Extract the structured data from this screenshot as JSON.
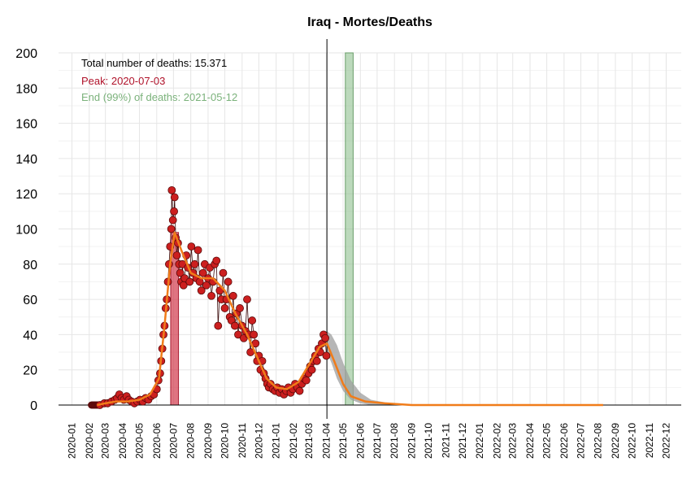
{
  "chart_data": {
    "type": "scatter",
    "title": "Iraq - Mortes/Deaths",
    "xlabel": "",
    "ylabel": "",
    "ylim": [
      0,
      200
    ],
    "yticks": [
      0,
      20,
      40,
      60,
      80,
      100,
      120,
      140,
      160,
      180,
      200
    ],
    "xlim": [
      "2019-12-08",
      "2022-12-28"
    ],
    "xticks": [
      "2020-01",
      "2020-02",
      "2020-03",
      "2020-04",
      "2020-05",
      "2020-06",
      "2020-07",
      "2020-08",
      "2020-09",
      "2020-10",
      "2020-11",
      "2020-12",
      "2021-01",
      "2021-02",
      "2021-03",
      "2021-04",
      "2021-05",
      "2021-06",
      "2021-07",
      "2021-08",
      "2021-09",
      "2021-10",
      "2021-11",
      "2021-12",
      "2022-01",
      "2022-02",
      "2022-03",
      "2022-04",
      "2022-05",
      "2022-06",
      "2022-07",
      "2022-08",
      "2022-09",
      "2022-10",
      "2022-11",
      "2022-12"
    ],
    "grid": true,
    "annotations": {
      "total": "Total number of deaths: 15.371",
      "peak": "Peak: 2020-07-03",
      "end": "End (99%) of deaths: 2021-05-12"
    },
    "vline_date": "2021-04-02",
    "peak_band": [
      "2020-06-26",
      "2020-07-10"
    ],
    "end_band": [
      "2021-05-05",
      "2021-05-19"
    ],
    "colors": {
      "points": "#cc1f1f",
      "point_edge": "#5a0a0a",
      "smooth": "#f07c1a",
      "peak_band": "#d2394b",
      "end_band": "#8fbf8f",
      "forecast": "#9e9e9e"
    },
    "smooth": [
      [
        "2020-02-15",
        0
      ],
      [
        "2020-03-01",
        1
      ],
      [
        "2020-03-20",
        2
      ],
      [
        "2020-04-10",
        2
      ],
      [
        "2020-05-01",
        3
      ],
      [
        "2020-05-20",
        6
      ],
      [
        "2020-06-05",
        15
      ],
      [
        "2020-06-15",
        45
      ],
      [
        "2020-06-25",
        80
      ],
      [
        "2020-07-03",
        98
      ],
      [
        "2020-07-15",
        88
      ],
      [
        "2020-08-01",
        75
      ],
      [
        "2020-08-20",
        72
      ],
      [
        "2020-09-10",
        72
      ],
      [
        "2020-10-01",
        65
      ],
      [
        "2020-10-20",
        52
      ],
      [
        "2020-11-10",
        40
      ],
      [
        "2020-12-01",
        25
      ],
      [
        "2020-12-15",
        15
      ],
      [
        "2021-01-01",
        10
      ],
      [
        "2021-01-20",
        9
      ],
      [
        "2021-02-10",
        13
      ],
      [
        "2021-03-01",
        23
      ],
      [
        "2021-03-20",
        33
      ],
      [
        "2021-04-02",
        35
      ],
      [
        "2021-04-15",
        25
      ],
      [
        "2021-05-01",
        12
      ],
      [
        "2021-05-15",
        5
      ],
      [
        "2021-06-10",
        2
      ],
      [
        "2021-07-15",
        1
      ],
      [
        "2021-09-01",
        0
      ],
      [
        "2022-08-10",
        0
      ]
    ],
    "forecast_band": [
      [
        "2021-04-02",
        30,
        42
      ],
      [
        "2021-04-10",
        24,
        40
      ],
      [
        "2021-04-20",
        15,
        34
      ],
      [
        "2021-05-01",
        8,
        24
      ],
      [
        "2021-05-15",
        3,
        14
      ],
      [
        "2021-06-01",
        1,
        7
      ],
      [
        "2021-06-20",
        0,
        3
      ],
      [
        "2021-07-15",
        0,
        1.5
      ],
      [
        "2021-08-15",
        0,
        0.6
      ]
    ],
    "points": [
      [
        "2020-02-20",
        0
      ],
      [
        "2020-02-28",
        1
      ],
      [
        "2020-03-05",
        1
      ],
      [
        "2020-03-12",
        2
      ],
      [
        "2020-03-18",
        3
      ],
      [
        "2020-03-22",
        4
      ],
      [
        "2020-03-26",
        6
      ],
      [
        "2020-03-30",
        4
      ],
      [
        "2020-04-03",
        3
      ],
      [
        "2020-04-08",
        5
      ],
      [
        "2020-04-12",
        3
      ],
      [
        "2020-04-17",
        2
      ],
      [
        "2020-04-22",
        1
      ],
      [
        "2020-04-27",
        2
      ],
      [
        "2020-05-02",
        3
      ],
      [
        "2020-05-07",
        2
      ],
      [
        "2020-05-12",
        4
      ],
      [
        "2020-05-17",
        3
      ],
      [
        "2020-05-22",
        5
      ],
      [
        "2020-05-27",
        6
      ],
      [
        "2020-06-01",
        9
      ],
      [
        "2020-06-04",
        14
      ],
      [
        "2020-06-07",
        18
      ],
      [
        "2020-06-09",
        25
      ],
      [
        "2020-06-11",
        32
      ],
      [
        "2020-06-13",
        40
      ],
      [
        "2020-06-15",
        45
      ],
      [
        "2020-06-17",
        55
      ],
      [
        "2020-06-19",
        60
      ],
      [
        "2020-06-21",
        70
      ],
      [
        "2020-06-23",
        80
      ],
      [
        "2020-06-25",
        90
      ],
      [
        "2020-06-27",
        100
      ],
      [
        "2020-06-28",
        122
      ],
      [
        "2020-06-30",
        105
      ],
      [
        "2020-07-02",
        110
      ],
      [
        "2020-07-03",
        118
      ],
      [
        "2020-07-05",
        95
      ],
      [
        "2020-07-07",
        85
      ],
      [
        "2020-07-09",
        92
      ],
      [
        "2020-07-11",
        80
      ],
      [
        "2020-07-13",
        75
      ],
      [
        "2020-07-15",
        70
      ],
      [
        "2020-07-17",
        80
      ],
      [
        "2020-07-19",
        68
      ],
      [
        "2020-07-21",
        72
      ],
      [
        "2020-07-24",
        85
      ],
      [
        "2020-07-27",
        78
      ],
      [
        "2020-07-30",
        70
      ],
      [
        "2020-08-02",
        90
      ],
      [
        "2020-08-05",
        75
      ],
      [
        "2020-08-08",
        80
      ],
      [
        "2020-08-11",
        72
      ],
      [
        "2020-08-14",
        88
      ],
      [
        "2020-08-17",
        70
      ],
      [
        "2020-08-20",
        65
      ],
      [
        "2020-08-23",
        75
      ],
      [
        "2020-08-26",
        80
      ],
      [
        "2020-08-29",
        68
      ],
      [
        "2020-09-01",
        72
      ],
      [
        "2020-09-04",
        78
      ],
      [
        "2020-09-07",
        62
      ],
      [
        "2020-09-10",
        70
      ],
      [
        "2020-09-13",
        80
      ],
      [
        "2020-09-16",
        82
      ],
      [
        "2020-09-19",
        45
      ],
      [
        "2020-09-22",
        65
      ],
      [
        "2020-09-25",
        60
      ],
      [
        "2020-09-28",
        75
      ],
      [
        "2020-10-01",
        55
      ],
      [
        "2020-10-04",
        60
      ],
      [
        "2020-10-07",
        70
      ],
      [
        "2020-10-10",
        50
      ],
      [
        "2020-10-13",
        48
      ],
      [
        "2020-10-16",
        62
      ],
      [
        "2020-10-19",
        45
      ],
      [
        "2020-10-22",
        52
      ],
      [
        "2020-10-25",
        40
      ],
      [
        "2020-10-28",
        55
      ],
      [
        "2020-11-01",
        45
      ],
      [
        "2020-11-04",
        38
      ],
      [
        "2020-11-07",
        42
      ],
      [
        "2020-11-10",
        60
      ],
      [
        "2020-11-13",
        40
      ],
      [
        "2020-11-16",
        30
      ],
      [
        "2020-11-19",
        48
      ],
      [
        "2020-11-22",
        40
      ],
      [
        "2020-11-25",
        35
      ],
      [
        "2020-11-28",
        25
      ],
      [
        "2020-12-01",
        28
      ],
      [
        "2020-12-04",
        20
      ],
      [
        "2020-12-07",
        25
      ],
      [
        "2020-12-10",
        18
      ],
      [
        "2020-12-13",
        15
      ],
      [
        "2020-12-16",
        12
      ],
      [
        "2020-12-19",
        10
      ],
      [
        "2020-12-22",
        12
      ],
      [
        "2020-12-26",
        9
      ],
      [
        "2020-12-30",
        8
      ],
      [
        "2021-01-03",
        10
      ],
      [
        "2021-01-07",
        7
      ],
      [
        "2021-01-11",
        9
      ],
      [
        "2021-01-15",
        6
      ],
      [
        "2021-01-19",
        8
      ],
      [
        "2021-01-23",
        10
      ],
      [
        "2021-01-27",
        7
      ],
      [
        "2021-01-31",
        9
      ],
      [
        "2021-02-04",
        12
      ],
      [
        "2021-02-08",
        10
      ],
      [
        "2021-02-12",
        8
      ],
      [
        "2021-02-16",
        12
      ],
      [
        "2021-02-20",
        15
      ],
      [
        "2021-02-24",
        14
      ],
      [
        "2021-02-28",
        18
      ],
      [
        "2021-03-03",
        22
      ],
      [
        "2021-03-06",
        20
      ],
      [
        "2021-03-09",
        25
      ],
      [
        "2021-03-12",
        28
      ],
      [
        "2021-03-15",
        25
      ],
      [
        "2021-03-18",
        32
      ],
      [
        "2021-03-21",
        30
      ],
      [
        "2021-03-24",
        35
      ],
      [
        "2021-03-27",
        40
      ],
      [
        "2021-03-30",
        38
      ],
      [
        "2021-04-01",
        28
      ]
    ]
  }
}
